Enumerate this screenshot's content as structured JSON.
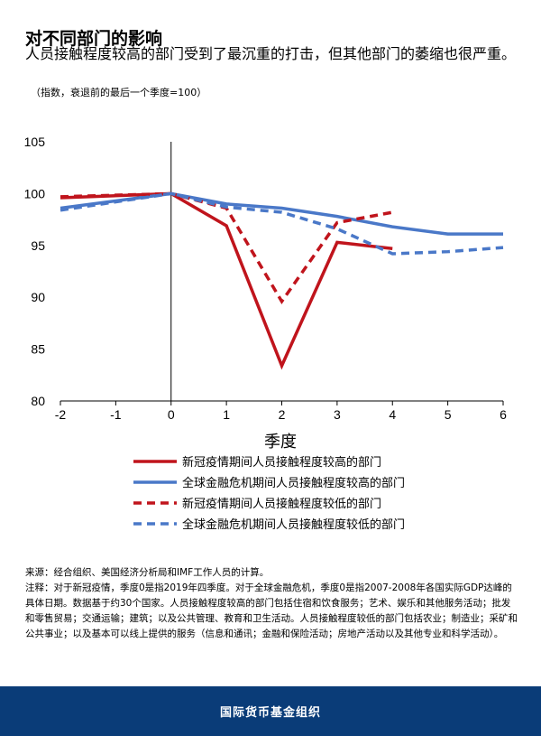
{
  "header": {
    "title": "对不同部门的影响",
    "subtitle": "人员接触程度较高的部门受到了最沉重的打击，但其他部门的萎缩也很严重。",
    "unit": "（指数，衰退前的最后一个季度=100）"
  },
  "chart_data": {
    "type": "line",
    "title": "对不同部门的影响",
    "xlabel": "季度",
    "ylabel": "",
    "xlim": [
      -2,
      6
    ],
    "ylim": [
      80,
      105
    ],
    "x_ticks": [
      "-2",
      "-1",
      "0",
      "1",
      "2",
      "3",
      "4",
      "5",
      "6"
    ],
    "y_ticks": [
      "80",
      "85",
      "90",
      "95",
      "100",
      "105"
    ],
    "grid": false,
    "legend_position": "bottom",
    "series": [
      {
        "name": "新冠疫情期间人员接触程度较高的部门",
        "color": "#c0141c",
        "dash": false,
        "x": [
          -2,
          0,
          1,
          2,
          3,
          4
        ],
        "values": [
          99.6,
          100,
          96.9,
          83.4,
          95.3,
          94.7
        ]
      },
      {
        "name": "全球金融危机期间人员接触程度较高的部门",
        "color": "#4a78c8",
        "dash": false,
        "x": [
          -2,
          0,
          1,
          2,
          3,
          4,
          5,
          6
        ],
        "values": [
          98.6,
          100,
          99.0,
          98.6,
          97.8,
          96.8,
          96.1,
          96.1
        ]
      },
      {
        "name": "新冠疫情期间人员接触程度较低的部门",
        "color": "#c0141c",
        "dash": true,
        "x": [
          -2,
          0,
          1,
          2,
          3,
          4
        ],
        "values": [
          99.7,
          100,
          98.6,
          89.6,
          97.2,
          98.2
        ]
      },
      {
        "name": "全球金融危机期间人员接触程度较低的部门",
        "color": "#4a78c8",
        "dash": true,
        "x": [
          -2,
          0,
          1,
          2,
          3,
          4,
          5,
          6
        ],
        "values": [
          98.4,
          100,
          98.7,
          98.2,
          96.6,
          94.2,
          94.4,
          94.8
        ]
      }
    ]
  },
  "notes": {
    "source": "来源：经合组织、美国经济分析局和IMF工作人员的计算。",
    "note": "注释：对于新冠疫情，季度0是指2019年四季度。对于全球金融危机，季度0是指2007-2008年各国实际GDP达峰的具体日期。数据基于约30个国家。人员接触程度较高的部门包括住宿和饮食服务；艺术、娱乐和其他服务活动；批发和零售贸易；交通运输；建筑；以及公共管理、教育和卫生活动。人员接触程度较低的部门包括农业；制造业；采矿和公共事业；以及基本可以线上提供的服务（信息和通讯；金融和保险活动；房地产活动以及其他专业和科学活动）。"
  },
  "footer": {
    "org": "国际货币基金组织"
  }
}
